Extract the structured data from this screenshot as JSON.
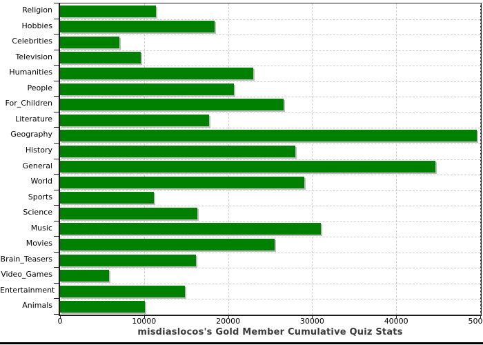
{
  "chart_data": {
    "type": "bar",
    "orientation": "horizontal",
    "title": "misdiaslocos's Gold Member Cumulative Quiz Stats",
    "categories": [
      "Religion",
      "Hobbies",
      "Celebrities",
      "Television",
      "Humanities",
      "People",
      "For_Children",
      "Literature",
      "Geography",
      "History",
      "General",
      "World",
      "Sports",
      "Science",
      "Music",
      "Movies",
      "Brain_Teasers",
      "Video_Games",
      "Entertainment",
      "Animals"
    ],
    "values": [
      11400,
      18400,
      7100,
      9600,
      23000,
      20700,
      26600,
      17700,
      49600,
      28000,
      44700,
      29100,
      11200,
      16300,
      31000,
      25500,
      16200,
      5800,
      14900,
      10100
    ],
    "xlabel": "",
    "ylabel": "",
    "xlim": [
      0,
      50000
    ],
    "x_ticks": [
      0,
      10000,
      20000,
      30000,
      40000,
      50000
    ],
    "x_tick_labels": [
      "0",
      "10000",
      "20000",
      "30000",
      "40000",
      "50000"
    ],
    "grid": "dashed",
    "legend": "none",
    "colors": {
      "bar": "#008000",
      "bar_shadow": "#bdbdbd",
      "gridline": "#cccccc",
      "axis": "#1a1a1a",
      "title_text": "#3a3a3a",
      "tick_text": "#000000",
      "background": "#ffffff"
    }
  }
}
